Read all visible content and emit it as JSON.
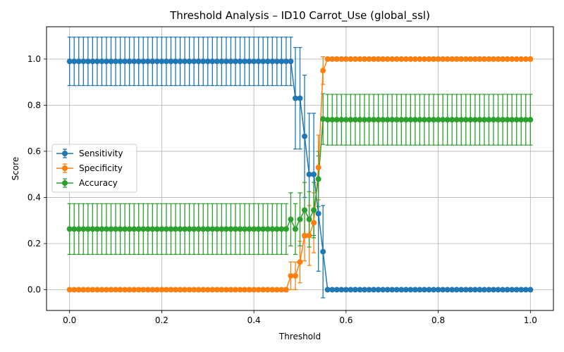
{
  "chart_data": {
    "type": "line",
    "title": "Threshold Analysis – ID10 Carrot_Use (global_ssl)",
    "xlabel": "Threshold",
    "ylabel": "Score",
    "xlim": [
      -0.05,
      1.05
    ],
    "ylim": [
      -0.09,
      1.14
    ],
    "x_ticks": [
      0.0,
      0.2,
      0.4,
      0.6,
      0.8,
      1.0
    ],
    "x_tick_labels": [
      "0.0",
      "0.2",
      "0.4",
      "0.6",
      "0.8",
      "1.0"
    ],
    "y_ticks": [
      0.0,
      0.2,
      0.4,
      0.6,
      0.8,
      1.0
    ],
    "y_tick_labels": [
      "0.0",
      "0.2",
      "0.4",
      "0.6",
      "0.8",
      "1.0"
    ],
    "grid": true,
    "legend_position": "center-left",
    "x": [
      0.0,
      0.01,
      0.02,
      0.03,
      0.04,
      0.05,
      0.06,
      0.07,
      0.08,
      0.09,
      0.1,
      0.11,
      0.12,
      0.13,
      0.14,
      0.15,
      0.16,
      0.17,
      0.18,
      0.19,
      0.2,
      0.21,
      0.22,
      0.23,
      0.24,
      0.25,
      0.26,
      0.27,
      0.28,
      0.29,
      0.3,
      0.31,
      0.32,
      0.33,
      0.34,
      0.35,
      0.36,
      0.37,
      0.38,
      0.39,
      0.4,
      0.41,
      0.42,
      0.43,
      0.44,
      0.45,
      0.46,
      0.47,
      0.48,
      0.49,
      0.5,
      0.51,
      0.52,
      0.53,
      0.54,
      0.55,
      0.56,
      0.57,
      0.58,
      0.59,
      0.6,
      0.61,
      0.62,
      0.63,
      0.64,
      0.65,
      0.66,
      0.67,
      0.68,
      0.69,
      0.7,
      0.71,
      0.72,
      0.73,
      0.74,
      0.75,
      0.76,
      0.77,
      0.78,
      0.79,
      0.8,
      0.81,
      0.82,
      0.83,
      0.84,
      0.85,
      0.86,
      0.87,
      0.88,
      0.89,
      0.9,
      0.91,
      0.92,
      0.93,
      0.94,
      0.95,
      0.96,
      0.97,
      0.98,
      0.99,
      1.0
    ],
    "series": [
      {
        "name": "Sensitivity",
        "color": "#1f77b4",
        "values": [
          0.99,
          0.99,
          0.99,
          0.99,
          0.99,
          0.99,
          0.99,
          0.99,
          0.99,
          0.99,
          0.99,
          0.99,
          0.99,
          0.99,
          0.99,
          0.99,
          0.99,
          0.99,
          0.99,
          0.99,
          0.99,
          0.99,
          0.99,
          0.99,
          0.99,
          0.99,
          0.99,
          0.99,
          0.99,
          0.99,
          0.99,
          0.99,
          0.99,
          0.99,
          0.99,
          0.99,
          0.99,
          0.99,
          0.99,
          0.99,
          0.99,
          0.99,
          0.99,
          0.99,
          0.99,
          0.99,
          0.99,
          0.99,
          0.99,
          0.83,
          0.83,
          0.665,
          0.5,
          0.5,
          0.33,
          0.165,
          0,
          0,
          0,
          0,
          0,
          0,
          0,
          0,
          0,
          0,
          0,
          0,
          0,
          0,
          0,
          0,
          0,
          0,
          0,
          0,
          0,
          0,
          0,
          0,
          0,
          0,
          0,
          0,
          0,
          0,
          0,
          0,
          0,
          0,
          0,
          0,
          0,
          0,
          0,
          0,
          0,
          0,
          0,
          0,
          0
        ],
        "errors": [
          0.105,
          0.105,
          0.105,
          0.105,
          0.105,
          0.105,
          0.105,
          0.105,
          0.105,
          0.105,
          0.105,
          0.105,
          0.105,
          0.105,
          0.105,
          0.105,
          0.105,
          0.105,
          0.105,
          0.105,
          0.105,
          0.105,
          0.105,
          0.105,
          0.105,
          0.105,
          0.105,
          0.105,
          0.105,
          0.105,
          0.105,
          0.105,
          0.105,
          0.105,
          0.105,
          0.105,
          0.105,
          0.105,
          0.105,
          0.105,
          0.105,
          0.105,
          0.105,
          0.105,
          0.105,
          0.105,
          0.105,
          0.105,
          0.105,
          0.22,
          0.22,
          0.265,
          0.265,
          0.265,
          0.25,
          0.2,
          0,
          0,
          0,
          0,
          0,
          0,
          0,
          0,
          0,
          0,
          0,
          0,
          0,
          0,
          0,
          0,
          0,
          0,
          0,
          0,
          0,
          0,
          0,
          0,
          0,
          0,
          0,
          0,
          0,
          0,
          0,
          0,
          0,
          0,
          0,
          0,
          0,
          0,
          0,
          0,
          0,
          0,
          0,
          0,
          0
        ]
      },
      {
        "name": "Specificity",
        "color": "#ff7f0e",
        "values": [
          0,
          0,
          0,
          0,
          0,
          0,
          0,
          0,
          0,
          0,
          0,
          0,
          0,
          0,
          0,
          0,
          0,
          0,
          0,
          0,
          0,
          0,
          0,
          0,
          0,
          0,
          0,
          0,
          0,
          0,
          0,
          0,
          0,
          0,
          0,
          0,
          0,
          0,
          0,
          0,
          0,
          0,
          0,
          0,
          0,
          0,
          0,
          0,
          0.06,
          0.06,
          0.12,
          0.235,
          0.235,
          0.29,
          0.53,
          0.95,
          1.0,
          1.0,
          1.0,
          1.0,
          1.0,
          1.0,
          1.0,
          1.0,
          1.0,
          1.0,
          1.0,
          1.0,
          1.0,
          1.0,
          1.0,
          1.0,
          1.0,
          1.0,
          1.0,
          1.0,
          1.0,
          1.0,
          1.0,
          1.0,
          1.0,
          1.0,
          1.0,
          1.0,
          1.0,
          1.0,
          1.0,
          1.0,
          1.0,
          1.0,
          1.0,
          1.0,
          1.0,
          1.0,
          1.0,
          1.0,
          1.0,
          1.0,
          1.0,
          1.0,
          1.0
        ],
        "errors": [
          0,
          0,
          0,
          0,
          0,
          0,
          0,
          0,
          0,
          0,
          0,
          0,
          0,
          0,
          0,
          0,
          0,
          0,
          0,
          0,
          0,
          0,
          0,
          0,
          0,
          0,
          0,
          0,
          0,
          0,
          0,
          0,
          0,
          0,
          0,
          0,
          0,
          0,
          0,
          0,
          0,
          0,
          0,
          0,
          0,
          0,
          0,
          0,
          0.06,
          0.06,
          0.09,
          0.11,
          0.13,
          0.13,
          0.14,
          0.06,
          0,
          0,
          0,
          0,
          0,
          0,
          0,
          0,
          0,
          0,
          0,
          0,
          0,
          0,
          0,
          0,
          0,
          0,
          0,
          0,
          0,
          0,
          0,
          0,
          0,
          0,
          0,
          0,
          0,
          0,
          0,
          0,
          0,
          0,
          0,
          0,
          0,
          0,
          0,
          0,
          0,
          0,
          0,
          0,
          0
        ]
      },
      {
        "name": "Accuracy",
        "color": "#2ca02c",
        "values": [
          0.263,
          0.263,
          0.263,
          0.263,
          0.263,
          0.263,
          0.263,
          0.263,
          0.263,
          0.263,
          0.263,
          0.263,
          0.263,
          0.263,
          0.263,
          0.263,
          0.263,
          0.263,
          0.263,
          0.263,
          0.263,
          0.263,
          0.263,
          0.263,
          0.263,
          0.263,
          0.263,
          0.263,
          0.263,
          0.263,
          0.263,
          0.263,
          0.263,
          0.263,
          0.263,
          0.263,
          0.263,
          0.263,
          0.263,
          0.263,
          0.263,
          0.263,
          0.263,
          0.263,
          0.263,
          0.263,
          0.263,
          0.263,
          0.305,
          0.263,
          0.305,
          0.345,
          0.305,
          0.345,
          0.48,
          0.74,
          0.737,
          0.737,
          0.737,
          0.737,
          0.737,
          0.737,
          0.737,
          0.737,
          0.737,
          0.737,
          0.737,
          0.737,
          0.737,
          0.737,
          0.737,
          0.737,
          0.737,
          0.737,
          0.737,
          0.737,
          0.737,
          0.737,
          0.737,
          0.737,
          0.737,
          0.737,
          0.737,
          0.737,
          0.737,
          0.737,
          0.737,
          0.737,
          0.737,
          0.737,
          0.737,
          0.737,
          0.737,
          0.737,
          0.737,
          0.737,
          0.737,
          0.737,
          0.737,
          0.737,
          0.737
        ],
        "errors": [
          0.11,
          0.11,
          0.11,
          0.11,
          0.11,
          0.11,
          0.11,
          0.11,
          0.11,
          0.11,
          0.11,
          0.11,
          0.11,
          0.11,
          0.11,
          0.11,
          0.11,
          0.11,
          0.11,
          0.11,
          0.11,
          0.11,
          0.11,
          0.11,
          0.11,
          0.11,
          0.11,
          0.11,
          0.11,
          0.11,
          0.11,
          0.11,
          0.11,
          0.11,
          0.11,
          0.11,
          0.11,
          0.11,
          0.11,
          0.11,
          0.11,
          0.11,
          0.11,
          0.11,
          0.11,
          0.11,
          0.11,
          0.11,
          0.115,
          0.11,
          0.115,
          0.12,
          0.12,
          0.12,
          0.12,
          0.11,
          0.11,
          0.11,
          0.11,
          0.11,
          0.11,
          0.11,
          0.11,
          0.11,
          0.11,
          0.11,
          0.11,
          0.11,
          0.11,
          0.11,
          0.11,
          0.11,
          0.11,
          0.11,
          0.11,
          0.11,
          0.11,
          0.11,
          0.11,
          0.11,
          0.11,
          0.11,
          0.11,
          0.11,
          0.11,
          0.11,
          0.11,
          0.11,
          0.11,
          0.11,
          0.11,
          0.11,
          0.11,
          0.11,
          0.11,
          0.11,
          0.11,
          0.11,
          0.11,
          0.11,
          0.11
        ]
      }
    ]
  }
}
